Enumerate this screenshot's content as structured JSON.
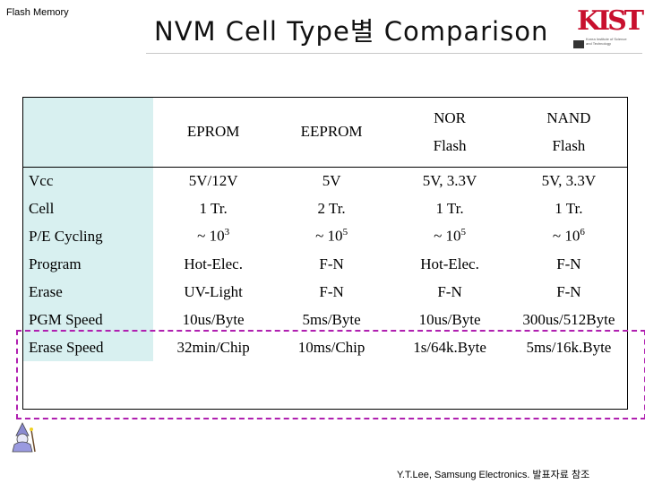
{
  "header": {
    "section_label": "Flash Memory",
    "title": "NVM Cell Type별 Comparison",
    "logo_mark": "KIST",
    "logo_subtitle": "Korea Institute of Science and Technology"
  },
  "table": {
    "columns": [
      {
        "line1": "EPROM",
        "line2": ""
      },
      {
        "line1": "EEPROM",
        "line2": ""
      },
      {
        "line1": "NOR",
        "line2": "Flash"
      },
      {
        "line1": "NAND",
        "line2": "Flash"
      }
    ],
    "rows": [
      {
        "label": "Vcc",
        "cells": [
          "5V/12V",
          "5V",
          "5V, 3.3V",
          "5V, 3.3V"
        ]
      },
      {
        "label": "Cell",
        "cells": [
          "1 Tr.",
          "2 Tr.",
          "1 Tr.",
          "1 Tr."
        ]
      },
      {
        "label": "P/E Cycling",
        "cells": [
          {
            "base": "~ 10",
            "exp": "3"
          },
          {
            "base": "~ 10",
            "exp": "5"
          },
          {
            "base": "~ 10",
            "exp": "5"
          },
          {
            "base": "~ 10",
            "exp": "6"
          }
        ]
      },
      {
        "label": "Program",
        "cells": [
          "Hot-Elec.",
          "F-N",
          "Hot-Elec.",
          "F-N"
        ]
      },
      {
        "label": "Erase",
        "cells": [
          "UV-Light",
          "F-N",
          "F-N",
          "F-N"
        ]
      },
      {
        "label": "PGM Speed",
        "cells": [
          "10us/Byte",
          "5ms/Byte",
          "10us/Byte",
          "300us/512Byte"
        ]
      },
      {
        "label": "Erase Speed",
        "cells": [
          "32min/Chip",
          "10ms/Chip",
          "1s/64k.Byte",
          "5ms/16k.Byte"
        ]
      }
    ]
  },
  "footer": {
    "credit": "Y.T.Lee, Samsung Electronics. 발표자료 참조"
  },
  "colors": {
    "rowhead_bg": "#d8f0f0",
    "highlight_border": "#b020b0",
    "logo_red": "#c8102e"
  }
}
